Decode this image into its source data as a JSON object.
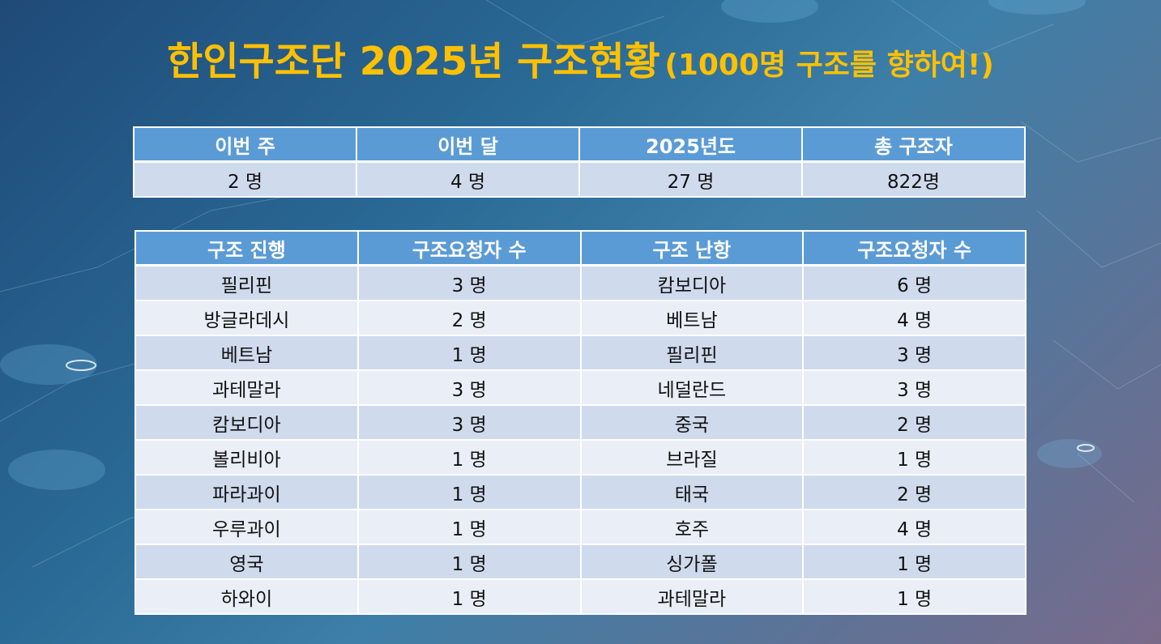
{
  "title": {
    "main": "한인구조단 2025년 구조현황",
    "sub": "(1000명 구조를 향하여!)"
  },
  "colors": {
    "title": "#ffc000",
    "header_bg": "#5b9bd5",
    "row_dark": "#cfdaed",
    "row_light": "#e9eef7"
  },
  "summary": {
    "headers": [
      "이번 주",
      "이번 달",
      "2025년도",
      "총 구조자"
    ],
    "values": [
      "2 명",
      "4 명",
      "27 명",
      "822명"
    ]
  },
  "status": {
    "headers": [
      "구조 진행",
      "구조요청자 수",
      "구조 난항",
      "구조요청자 수"
    ],
    "rows": [
      [
        "필리핀",
        "3 명",
        "캄보디아",
        "6 명"
      ],
      [
        "방글라데시",
        "2 명",
        "베트남",
        "4 명"
      ],
      [
        "베트남",
        "1 명",
        "필리핀",
        "3 명"
      ],
      [
        "과테말라",
        "3 명",
        "네덜란드",
        "3 명"
      ],
      [
        "캄보디아",
        "3 명",
        "중국",
        "2 명"
      ],
      [
        "볼리비아",
        "1 명",
        "브라질",
        "1 명"
      ],
      [
        "파라과이",
        "1 명",
        "태국",
        "2 명"
      ],
      [
        "우루과이",
        "1 명",
        "호주",
        "4 명"
      ],
      [
        "영국",
        "1 명",
        "싱가폴",
        "1 명"
      ],
      [
        "하와이",
        "1 명",
        "과테말라",
        "1 명"
      ]
    ]
  }
}
